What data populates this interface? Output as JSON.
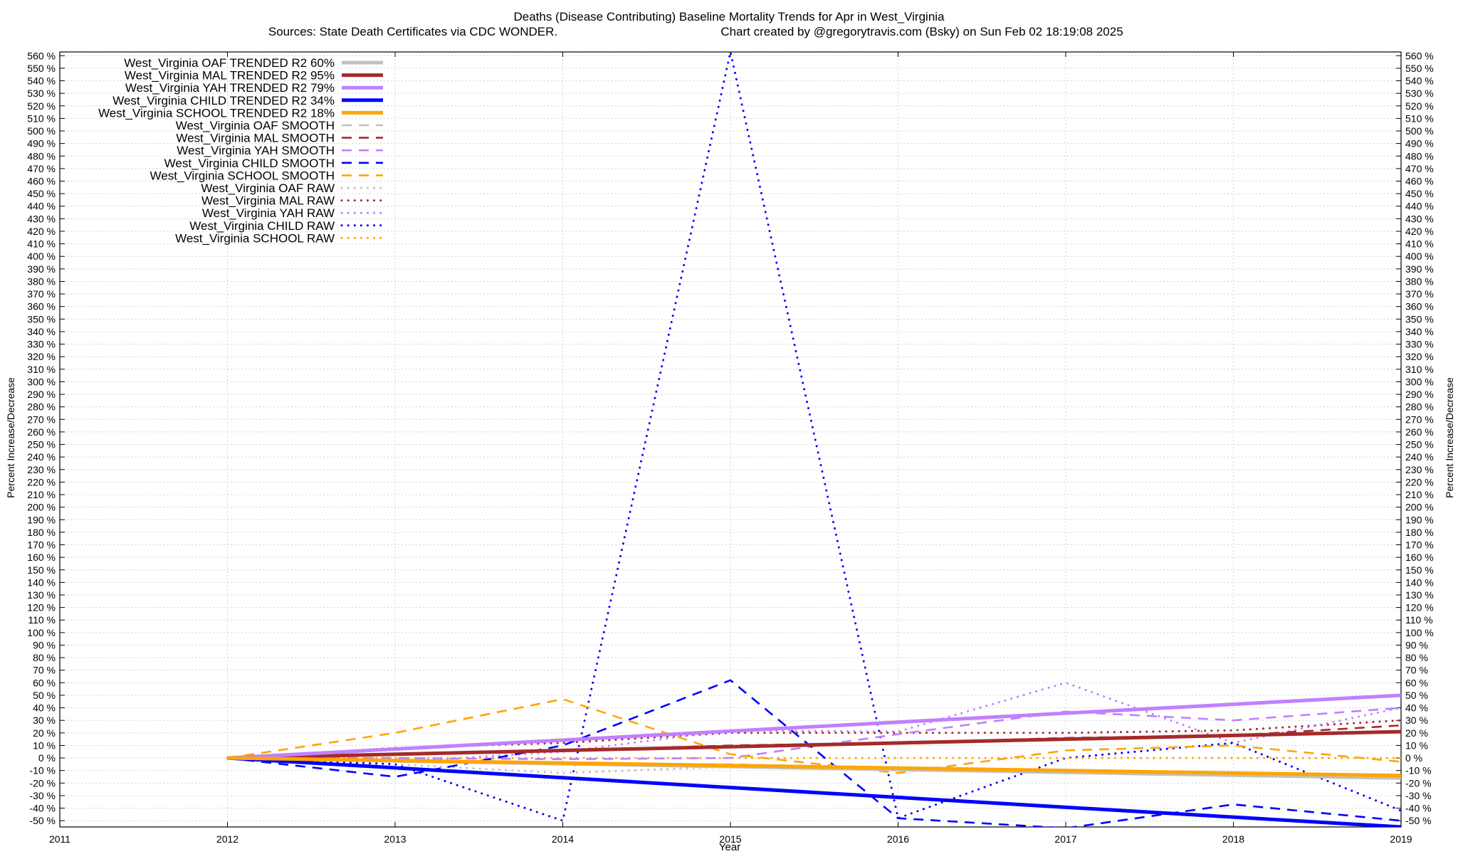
{
  "chart_data": {
    "type": "line",
    "title": "Deaths (Disease Contributing)  Baseline Mortality Trends for Apr in West_Virginia",
    "subtitle_left": "Sources: State Death Certificates via CDC WONDER.",
    "subtitle_right": "Chart created by @gregorytravis.com (Bsky) on Sun Feb 02 18:19:08 2025",
    "xlabel": "Year",
    "ylabel": "Percent Increase/Decrease",
    "xlim": [
      2011,
      2019
    ],
    "ylim": [
      -55,
      563
    ],
    "x_ticks": [
      "2011",
      "2012",
      "2013",
      "2014",
      "2015",
      "2016",
      "2017",
      "2018",
      "2019"
    ],
    "y_ticks": [
      "-50 %",
      "-40 %",
      "-30 %",
      "-20 %",
      "-10 %",
      "0 %",
      "10 %",
      "20 %",
      "30 %",
      "40 %",
      "50 %",
      "60 %",
      "70 %",
      "80 %",
      "90 %",
      "100 %",
      "110 %",
      "120 %",
      "130 %",
      "140 %",
      "150 %",
      "160 %",
      "170 %",
      "180 %",
      "190 %",
      "200 %",
      "210 %",
      "220 %",
      "230 %",
      "240 %",
      "250 %",
      "260 %",
      "270 %",
      "280 %",
      "290 %",
      "300 %",
      "310 %",
      "320 %",
      "330 %",
      "340 %",
      "350 %",
      "360 %",
      "370 %",
      "380 %",
      "390 %",
      "400 %",
      "410 %",
      "420 %",
      "430 %",
      "440 %",
      "450 %",
      "460 %",
      "470 %",
      "480 %",
      "490 %",
      "500 %",
      "510 %",
      "520 %",
      "530 %",
      "540 %",
      "550 %",
      "560 %"
    ],
    "grid": true,
    "legend_position": "top-left",
    "colors": {
      "OAF": "#c0c0c0",
      "MAL": "#a52a2a",
      "YAH": "#c080ff",
      "CHILD": "#0000ff",
      "SCHOOL": "#ffa500"
    },
    "series": [
      {
        "name": "West_Virginia OAF TRENDED R2  60%",
        "group": "OAF",
        "style": "trended",
        "x": [
          2012,
          2019
        ],
        "y": [
          0,
          -16
        ]
      },
      {
        "name": "West_Virginia MAL TRENDED R2  95%",
        "group": "MAL",
        "style": "trended",
        "x": [
          2012,
          2019
        ],
        "y": [
          0,
          21
        ]
      },
      {
        "name": "West_Virginia YAH TRENDED R2  79%",
        "group": "YAH",
        "style": "trended",
        "x": [
          2012,
          2019
        ],
        "y": [
          0,
          50
        ]
      },
      {
        "name": "West_Virginia CHILD TRENDED R2  34%",
        "group": "CHILD",
        "style": "trended",
        "x": [
          2012,
          2019
        ],
        "y": [
          0,
          -55
        ]
      },
      {
        "name": "West_Virginia SCHOOL TRENDED R2  18%",
        "group": "SCHOOL",
        "style": "trended",
        "x": [
          2012,
          2019
        ],
        "y": [
          0,
          -14
        ]
      },
      {
        "name": "West_Virginia OAF SMOOTH",
        "group": "OAF",
        "style": "smooth",
        "x": [
          2012,
          2013,
          2014,
          2015,
          2016,
          2017,
          2018,
          2019
        ],
        "y": [
          0,
          -3,
          -5,
          -5,
          -8,
          -10,
          -13,
          -16
        ]
      },
      {
        "name": "West_Virginia MAL SMOOTH",
        "group": "MAL",
        "style": "smooth",
        "x": [
          2012,
          2013,
          2014,
          2015,
          2016,
          2017,
          2018,
          2019
        ],
        "y": [
          0,
          3,
          6,
          10,
          12,
          16,
          18,
          26
        ]
      },
      {
        "name": "West_Virginia YAH SMOOTH",
        "group": "YAH",
        "style": "smooth",
        "x": [
          2012,
          2013,
          2014,
          2015,
          2016,
          2017,
          2018,
          2019
        ],
        "y": [
          0,
          0,
          -1,
          0,
          19,
          37,
          30,
          40
        ]
      },
      {
        "name": "West_Virginia CHILD SMOOTH",
        "group": "CHILD",
        "style": "smooth",
        "x": [
          2012,
          2013,
          2014,
          2015,
          2016,
          2017,
          2018,
          2019
        ],
        "y": [
          0,
          -15,
          10,
          62,
          -48,
          -56,
          -37,
          -50
        ]
      },
      {
        "name": "West_Virginia SCHOOL SMOOTH",
        "group": "SCHOOL",
        "style": "smooth",
        "x": [
          2012,
          2013,
          2014,
          2015,
          2016,
          2017,
          2018,
          2019
        ],
        "y": [
          0,
          20,
          47,
          3,
          -12,
          6,
          10,
          -3
        ]
      },
      {
        "name": "West_Virginia OAF RAW",
        "group": "OAF",
        "style": "raw",
        "x": [
          2012,
          2013,
          2014,
          2015,
          2016,
          2017,
          2018,
          2019
        ],
        "y": [
          0,
          -5,
          -12,
          -7,
          -10,
          -11,
          -14,
          -16
        ]
      },
      {
        "name": "West_Virginia MAL RAW",
        "group": "MAL",
        "style": "raw",
        "x": [
          2012,
          2013,
          2014,
          2015,
          2016,
          2017,
          2018,
          2019
        ],
        "y": [
          0,
          8,
          12,
          20,
          20,
          20,
          22,
          30
        ]
      },
      {
        "name": "West_Virginia YAH RAW",
        "group": "YAH",
        "style": "raw",
        "x": [
          2012,
          2013,
          2014,
          2015,
          2016,
          2017,
          2018,
          2019
        ],
        "y": [
          0,
          -3,
          5,
          22,
          21,
          60,
          12,
          40
        ]
      },
      {
        "name": "West_Virginia CHILD RAW",
        "group": "CHILD",
        "style": "raw",
        "x": [
          2012,
          2013,
          2014,
          2015,
          2016,
          2017,
          2018,
          2019
        ],
        "y": [
          0,
          -5,
          -50,
          563,
          -48,
          0,
          12,
          -42
        ]
      },
      {
        "name": "West_Virginia SCHOOL RAW",
        "group": "SCHOOL",
        "style": "raw",
        "x": [
          2012,
          2013,
          2014,
          2015,
          2016,
          2017,
          2018,
          2019
        ],
        "y": [
          0,
          0,
          0,
          0,
          0,
          0,
          0,
          0
        ]
      }
    ]
  }
}
